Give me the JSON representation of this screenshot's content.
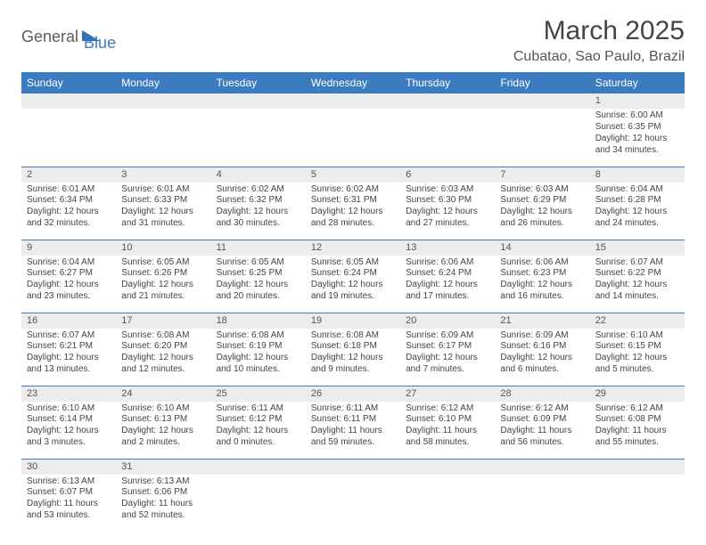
{
  "logo": {
    "word1": "General",
    "word2": "Blue",
    "tri_color": "#2f6fb0"
  },
  "title": "March 2025",
  "subtitle": "Cubatao, Sao Paulo, Brazil",
  "headers": [
    "Sunday",
    "Monday",
    "Tuesday",
    "Wednesday",
    "Thursday",
    "Friday",
    "Saturday"
  ],
  "colors": {
    "header_bg": "#3b7bbf",
    "header_fg": "#ffffff",
    "daynum_bg": "#ececec",
    "border": "#3b7bbf"
  },
  "weeks": [
    [
      {
        "empty": true
      },
      {
        "empty": true
      },
      {
        "empty": true
      },
      {
        "empty": true
      },
      {
        "empty": true
      },
      {
        "empty": true
      },
      {
        "day": "1",
        "sunrise": "Sunrise: 6:00 AM",
        "sunset": "Sunset: 6:35 PM",
        "daylight1": "Daylight: 12 hours",
        "daylight2": "and 34 minutes."
      }
    ],
    [
      {
        "day": "2",
        "sunrise": "Sunrise: 6:01 AM",
        "sunset": "Sunset: 6:34 PM",
        "daylight1": "Daylight: 12 hours",
        "daylight2": "and 32 minutes."
      },
      {
        "day": "3",
        "sunrise": "Sunrise: 6:01 AM",
        "sunset": "Sunset: 6:33 PM",
        "daylight1": "Daylight: 12 hours",
        "daylight2": "and 31 minutes."
      },
      {
        "day": "4",
        "sunrise": "Sunrise: 6:02 AM",
        "sunset": "Sunset: 6:32 PM",
        "daylight1": "Daylight: 12 hours",
        "daylight2": "and 30 minutes."
      },
      {
        "day": "5",
        "sunrise": "Sunrise: 6:02 AM",
        "sunset": "Sunset: 6:31 PM",
        "daylight1": "Daylight: 12 hours",
        "daylight2": "and 28 minutes."
      },
      {
        "day": "6",
        "sunrise": "Sunrise: 6:03 AM",
        "sunset": "Sunset: 6:30 PM",
        "daylight1": "Daylight: 12 hours",
        "daylight2": "and 27 minutes."
      },
      {
        "day": "7",
        "sunrise": "Sunrise: 6:03 AM",
        "sunset": "Sunset: 6:29 PM",
        "daylight1": "Daylight: 12 hours",
        "daylight2": "and 26 minutes."
      },
      {
        "day": "8",
        "sunrise": "Sunrise: 6:04 AM",
        "sunset": "Sunset: 6:28 PM",
        "daylight1": "Daylight: 12 hours",
        "daylight2": "and 24 minutes."
      }
    ],
    [
      {
        "day": "9",
        "sunrise": "Sunrise: 6:04 AM",
        "sunset": "Sunset: 6:27 PM",
        "daylight1": "Daylight: 12 hours",
        "daylight2": "and 23 minutes."
      },
      {
        "day": "10",
        "sunrise": "Sunrise: 6:05 AM",
        "sunset": "Sunset: 6:26 PM",
        "daylight1": "Daylight: 12 hours",
        "daylight2": "and 21 minutes."
      },
      {
        "day": "11",
        "sunrise": "Sunrise: 6:05 AM",
        "sunset": "Sunset: 6:25 PM",
        "daylight1": "Daylight: 12 hours",
        "daylight2": "and 20 minutes."
      },
      {
        "day": "12",
        "sunrise": "Sunrise: 6:05 AM",
        "sunset": "Sunset: 6:24 PM",
        "daylight1": "Daylight: 12 hours",
        "daylight2": "and 19 minutes."
      },
      {
        "day": "13",
        "sunrise": "Sunrise: 6:06 AM",
        "sunset": "Sunset: 6:24 PM",
        "daylight1": "Daylight: 12 hours",
        "daylight2": "and 17 minutes."
      },
      {
        "day": "14",
        "sunrise": "Sunrise: 6:06 AM",
        "sunset": "Sunset: 6:23 PM",
        "daylight1": "Daylight: 12 hours",
        "daylight2": "and 16 minutes."
      },
      {
        "day": "15",
        "sunrise": "Sunrise: 6:07 AM",
        "sunset": "Sunset: 6:22 PM",
        "daylight1": "Daylight: 12 hours",
        "daylight2": "and 14 minutes."
      }
    ],
    [
      {
        "day": "16",
        "sunrise": "Sunrise: 6:07 AM",
        "sunset": "Sunset: 6:21 PM",
        "daylight1": "Daylight: 12 hours",
        "daylight2": "and 13 minutes."
      },
      {
        "day": "17",
        "sunrise": "Sunrise: 6:08 AM",
        "sunset": "Sunset: 6:20 PM",
        "daylight1": "Daylight: 12 hours",
        "daylight2": "and 12 minutes."
      },
      {
        "day": "18",
        "sunrise": "Sunrise: 6:08 AM",
        "sunset": "Sunset: 6:19 PM",
        "daylight1": "Daylight: 12 hours",
        "daylight2": "and 10 minutes."
      },
      {
        "day": "19",
        "sunrise": "Sunrise: 6:08 AM",
        "sunset": "Sunset: 6:18 PM",
        "daylight1": "Daylight: 12 hours",
        "daylight2": "and 9 minutes."
      },
      {
        "day": "20",
        "sunrise": "Sunrise: 6:09 AM",
        "sunset": "Sunset: 6:17 PM",
        "daylight1": "Daylight: 12 hours",
        "daylight2": "and 7 minutes."
      },
      {
        "day": "21",
        "sunrise": "Sunrise: 6:09 AM",
        "sunset": "Sunset: 6:16 PM",
        "daylight1": "Daylight: 12 hours",
        "daylight2": "and 6 minutes."
      },
      {
        "day": "22",
        "sunrise": "Sunrise: 6:10 AM",
        "sunset": "Sunset: 6:15 PM",
        "daylight1": "Daylight: 12 hours",
        "daylight2": "and 5 minutes."
      }
    ],
    [
      {
        "day": "23",
        "sunrise": "Sunrise: 6:10 AM",
        "sunset": "Sunset: 6:14 PM",
        "daylight1": "Daylight: 12 hours",
        "daylight2": "and 3 minutes."
      },
      {
        "day": "24",
        "sunrise": "Sunrise: 6:10 AM",
        "sunset": "Sunset: 6:13 PM",
        "daylight1": "Daylight: 12 hours",
        "daylight2": "and 2 minutes."
      },
      {
        "day": "25",
        "sunrise": "Sunrise: 6:11 AM",
        "sunset": "Sunset: 6:12 PM",
        "daylight1": "Daylight: 12 hours",
        "daylight2": "and 0 minutes."
      },
      {
        "day": "26",
        "sunrise": "Sunrise: 6:11 AM",
        "sunset": "Sunset: 6:11 PM",
        "daylight1": "Daylight: 11 hours",
        "daylight2": "and 59 minutes."
      },
      {
        "day": "27",
        "sunrise": "Sunrise: 6:12 AM",
        "sunset": "Sunset: 6:10 PM",
        "daylight1": "Daylight: 11 hours",
        "daylight2": "and 58 minutes."
      },
      {
        "day": "28",
        "sunrise": "Sunrise: 6:12 AM",
        "sunset": "Sunset: 6:09 PM",
        "daylight1": "Daylight: 11 hours",
        "daylight2": "and 56 minutes."
      },
      {
        "day": "29",
        "sunrise": "Sunrise: 6:12 AM",
        "sunset": "Sunset: 6:08 PM",
        "daylight1": "Daylight: 11 hours",
        "daylight2": "and 55 minutes."
      }
    ],
    [
      {
        "day": "30",
        "sunrise": "Sunrise: 6:13 AM",
        "sunset": "Sunset: 6:07 PM",
        "daylight1": "Daylight: 11 hours",
        "daylight2": "and 53 minutes."
      },
      {
        "day": "31",
        "sunrise": "Sunrise: 6:13 AM",
        "sunset": "Sunset: 6:06 PM",
        "daylight1": "Daylight: 11 hours",
        "daylight2": "and 52 minutes."
      },
      {
        "empty": true
      },
      {
        "empty": true
      },
      {
        "empty": true
      },
      {
        "empty": true
      },
      {
        "empty": true
      }
    ]
  ]
}
